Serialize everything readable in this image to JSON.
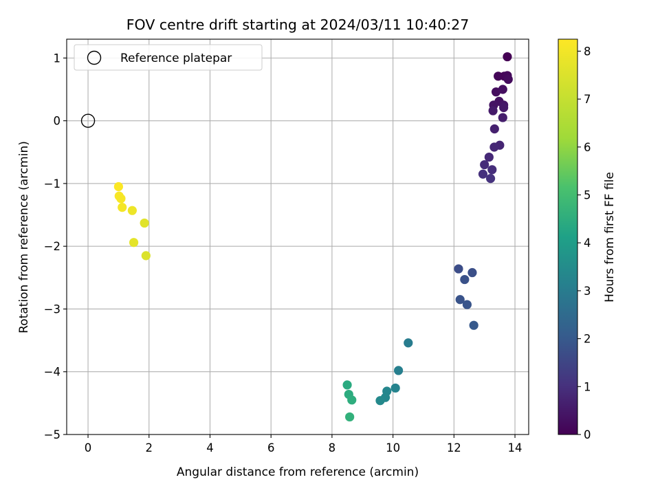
{
  "chart_data": {
    "type": "scatter",
    "title": "FOV centre drift starting at 2024/03/11 10:40:27",
    "xlabel": "Angular distance from reference (arcmin)",
    "ylabel": "Rotation from reference (arcmin)",
    "xlim": [
      -0.7,
      14.45
    ],
    "ylim": [
      -5.0,
      1.3
    ],
    "xticks": [
      0,
      2,
      4,
      6,
      8,
      10,
      12,
      14
    ],
    "yticks": [
      1,
      0,
      -1,
      -2,
      -3,
      -4,
      -5
    ],
    "grid": true,
    "legend": {
      "placement": "top-left",
      "entries": [
        "Reference platepar"
      ]
    },
    "reference": {
      "x": 0,
      "y": 0
    },
    "colorbar": {
      "label": "Hours from first FF file",
      "range": [
        0,
        8.25
      ],
      "ticks": [
        0,
        1,
        2,
        3,
        4,
        5,
        6,
        7,
        8
      ],
      "colormap": "viridis"
    },
    "points": [
      {
        "x": 13.75,
        "y": 1.02,
        "h": 0.0
      },
      {
        "x": 13.45,
        "y": 0.71,
        "h": 0.1
      },
      {
        "x": 13.65,
        "y": 0.71,
        "h": 0.1
      },
      {
        "x": 13.75,
        "y": 0.72,
        "h": 0.15
      },
      {
        "x": 13.78,
        "y": 0.66,
        "h": 0.2
      },
      {
        "x": 13.38,
        "y": 0.46,
        "h": 0.25
      },
      {
        "x": 13.6,
        "y": 0.5,
        "h": 0.3
      },
      {
        "x": 13.48,
        "y": 0.31,
        "h": 0.35
      },
      {
        "x": 13.3,
        "y": 0.25,
        "h": 0.4
      },
      {
        "x": 13.63,
        "y": 0.25,
        "h": 0.45
      },
      {
        "x": 13.63,
        "y": 0.21,
        "h": 0.5
      },
      {
        "x": 13.28,
        "y": 0.16,
        "h": 0.55
      },
      {
        "x": 13.6,
        "y": 0.05,
        "h": 0.6
      },
      {
        "x": 13.33,
        "y": -0.13,
        "h": 0.65
      },
      {
        "x": 13.5,
        "y": -0.39,
        "h": 0.75
      },
      {
        "x": 13.32,
        "y": -0.42,
        "h": 0.8
      },
      {
        "x": 13.15,
        "y": -0.58,
        "h": 0.85
      },
      {
        "x": 13.0,
        "y": -0.7,
        "h": 0.9
      },
      {
        "x": 13.25,
        "y": -0.78,
        "h": 0.95
      },
      {
        "x": 12.95,
        "y": -0.85,
        "h": 1.0
      },
      {
        "x": 13.2,
        "y": -0.92,
        "h": 1.05
      },
      {
        "x": 12.15,
        "y": -2.36,
        "h": 1.7
      },
      {
        "x": 12.6,
        "y": -2.42,
        "h": 1.75
      },
      {
        "x": 12.35,
        "y": -2.53,
        "h": 1.8
      },
      {
        "x": 12.2,
        "y": -2.85,
        "h": 1.85
      },
      {
        "x": 12.43,
        "y": -2.93,
        "h": 1.9
      },
      {
        "x": 12.65,
        "y": -3.26,
        "h": 2.0
      },
      {
        "x": 10.5,
        "y": -3.54,
        "h": 3.0
      },
      {
        "x": 10.18,
        "y": -3.98,
        "h": 3.1
      },
      {
        "x": 10.08,
        "y": -4.26,
        "h": 3.2
      },
      {
        "x": 9.8,
        "y": -4.31,
        "h": 3.3
      },
      {
        "x": 9.75,
        "y": -4.41,
        "h": 3.35
      },
      {
        "x": 9.58,
        "y": -4.46,
        "h": 3.4
      },
      {
        "x": 8.5,
        "y": -4.21,
        "h": 4.4
      },
      {
        "x": 8.55,
        "y": -4.36,
        "h": 4.45
      },
      {
        "x": 8.65,
        "y": -4.45,
        "h": 4.5
      },
      {
        "x": 8.58,
        "y": -4.72,
        "h": 4.6
      },
      {
        "x": 1.0,
        "y": -1.05,
        "h": 8.2
      },
      {
        "x": 1.02,
        "y": -1.2,
        "h": 8.15
      },
      {
        "x": 1.08,
        "y": -1.24,
        "h": 8.1
      },
      {
        "x": 1.12,
        "y": -1.38,
        "h": 8.05
      },
      {
        "x": 1.45,
        "y": -1.43,
        "h": 7.9
      },
      {
        "x": 1.85,
        "y": -1.63,
        "h": 7.6
      },
      {
        "x": 1.5,
        "y": -1.94,
        "h": 7.7
      },
      {
        "x": 1.9,
        "y": -2.15,
        "h": 7.5
      }
    ]
  }
}
